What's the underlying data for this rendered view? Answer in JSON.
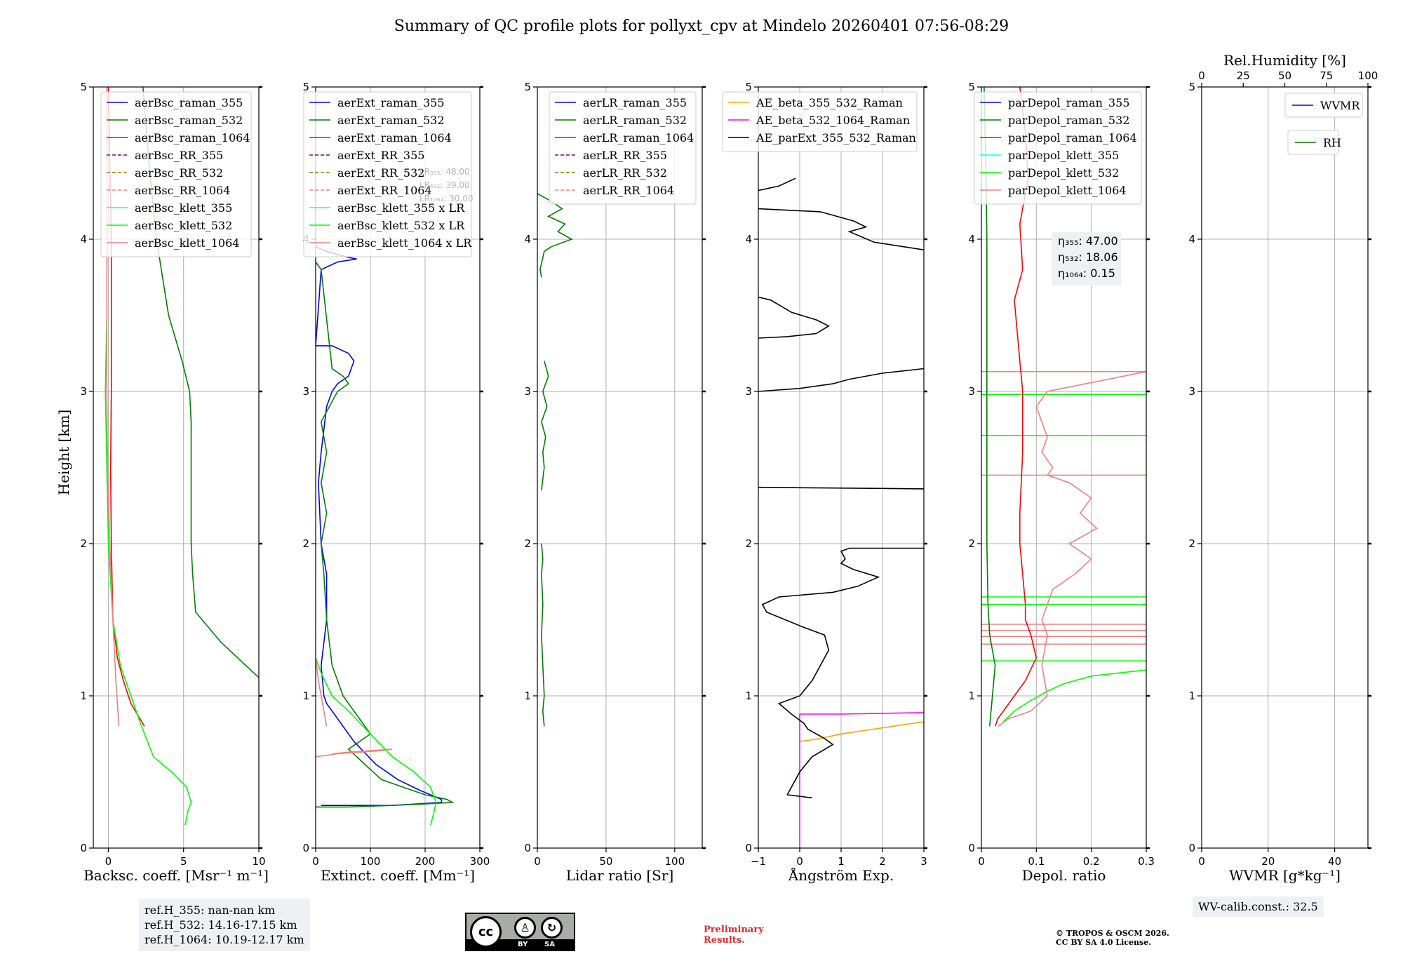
{
  "title": "Summary of QC profile plots for pollyxt_cpv at Mindelo 20260401 07:56-08:29",
  "colors": {
    "blue": "#0000ff",
    "green": "#008000",
    "red": "#ff0000",
    "purple": "#800080",
    "olive": "#808000",
    "salmon": "#fa8072",
    "cyan": "#00ffff",
    "lime": "#00ff00",
    "lightred": "#f08080",
    "orange": "#ffa500",
    "magenta": "#ff00ff",
    "black": "#000000"
  },
  "chart_data": [
    {
      "type": "line",
      "id": "bsc",
      "xlabel": "Backsc. coeff. [Msr⁻¹ m⁻¹]",
      "ylabel": "Height [km]",
      "xlim": [
        -1,
        10
      ],
      "ylim": [
        0,
        5
      ],
      "xticks": [
        0,
        5,
        10
      ],
      "yticks": [
        0,
        1,
        2,
        3,
        4,
        5
      ],
      "legend": [
        "aerBsc_raman_355",
        "aerBsc_raman_532",
        "aerBsc_raman_1064",
        "aerBsc_RR_355",
        "aerBsc_RR_532",
        "aerBsc_RR_1064",
        "aerBsc_klett_355",
        "aerBsc_klett_532",
        "aerBsc_klett_1064"
      ],
      "series": [
        {
          "name": "aerBsc_raman_532",
          "color": "green",
          "x": [
            2.3,
            2.7,
            3.2,
            4.0,
            4.9,
            5.4,
            5.5,
            5.5,
            5.5,
            5.5,
            5.6,
            5.8,
            7.5,
            10.0
          ],
          "y": [
            5.0,
            4.5,
            4.0,
            3.5,
            3.2,
            3.0,
            2.8,
            2.5,
            2.2,
            2.0,
            1.8,
            1.55,
            1.35,
            1.12
          ]
        },
        {
          "name": "aerBsc_raman_1064",
          "color": "red",
          "x": [
            0.0,
            0.1,
            0.2,
            0.2,
            0.2,
            0.15,
            0.2,
            0.3,
            0.6,
            1.0,
            1.5,
            2.4
          ],
          "y": [
            5.0,
            4.5,
            4.0,
            3.5,
            3.0,
            2.5,
            2.0,
            1.5,
            1.25,
            1.1,
            0.95,
            0.8
          ]
        },
        {
          "name": "aerBsc_klett_532",
          "color": "lime",
          "x": [
            -0.1,
            -0.1,
            -0.2,
            -0.1,
            0.0,
            0.3,
            0.8,
            1.5,
            2.2,
            3.0,
            4.2,
            5.2,
            5.5,
            5.3,
            5.1
          ],
          "y": [
            4.0,
            3.5,
            3.0,
            2.5,
            2.0,
            1.5,
            1.2,
            1.0,
            0.8,
            0.6,
            0.5,
            0.4,
            0.3,
            0.25,
            0.15
          ]
        },
        {
          "name": "aerBsc_klett_1064",
          "color": "lightred",
          "x": [
            -0.1,
            -0.1,
            -0.1,
            -0.1,
            -0.1,
            -0.05,
            0.1,
            0.3,
            0.5,
            0.7
          ],
          "y": [
            5.0,
            4.5,
            4.0,
            3.5,
            3.0,
            2.5,
            2.0,
            1.5,
            1.1,
            0.8
          ]
        }
      ]
    },
    {
      "type": "line",
      "id": "ext",
      "xlabel": "Extinct. coeff. [Mm⁻¹]",
      "ylabel": "",
      "xlim": [
        0,
        300
      ],
      "ylim": [
        0,
        5
      ],
      "xticks": [
        0,
        100,
        200,
        300
      ],
      "yticks": [
        0,
        1,
        2,
        3,
        4,
        5
      ],
      "legend": [
        "aerExt_raman_355",
        "aerExt_raman_532",
        "aerExt_raman_1064",
        "aerExt_RR_355",
        "aerExt_RR_532",
        "aerExt_RR_1064",
        "aerBsc_klett_355 x LR",
        "aerBsc_klett_532 x LR",
        "aerBsc_klett_1064 x LR"
      ],
      "lr_note": [
        "LR₃₅₅: 48.00",
        "LR₅₃₂: 39.00",
        "LR₁₀₆₄: 30.00"
      ],
      "series": [
        {
          "name": "aerExt_raman_355",
          "color": "blue",
          "x": [
            0,
            20,
            40,
            60,
            75,
            40,
            10,
            0,
            30,
            60,
            70,
            60,
            40,
            30,
            20,
            10,
            5,
            10,
            20,
            20,
            10,
            15,
            20,
            40,
            70,
            110,
            150,
            190,
            230,
            230,
            140,
            10
          ],
          "y": [
            3.95,
            3.92,
            3.9,
            3.88,
            3.87,
            3.85,
            3.8,
            3.3,
            3.3,
            3.25,
            3.2,
            3.1,
            3.05,
            3.0,
            2.9,
            2.6,
            2.4,
            2.0,
            1.8,
            1.5,
            1.2,
            1.0,
            0.95,
            0.85,
            0.7,
            0.55,
            0.45,
            0.38,
            0.32,
            0.3,
            0.28,
            0.28
          ]
        },
        {
          "name": "aerExt_raman_532",
          "color": "green",
          "x": [
            0,
            10,
            30,
            50,
            60,
            40,
            10,
            20,
            10,
            20,
            10,
            15,
            20,
            30,
            50,
            80,
            100,
            80,
            60,
            90,
            120,
            160,
            200,
            240,
            250,
            200,
            140,
            60,
            0
          ],
          "y": [
            3.85,
            3.8,
            3.15,
            3.1,
            3.05,
            3.0,
            2.8,
            2.6,
            2.4,
            2.2,
            2.0,
            1.8,
            1.5,
            1.2,
            1.0,
            0.85,
            0.75,
            0.7,
            0.65,
            0.55,
            0.45,
            0.4,
            0.35,
            0.32,
            0.3,
            0.29,
            0.28,
            0.27,
            0.27
          ]
        },
        {
          "name": "aerExt_RR_1064",
          "color": "salmon",
          "x": [
            0,
            40,
            80,
            120,
            140,
            100,
            60,
            30
          ],
          "y": [
            0.6,
            0.62,
            0.63,
            0.64,
            0.65,
            0.64,
            0.63,
            0.62
          ]
        },
        {
          "name": "aerBsc_klett_532 x LR",
          "color": "lime",
          "x": [
            0,
            10,
            30,
            60,
            100,
            140,
            180,
            210,
            220,
            215,
            210
          ],
          "y": [
            1.25,
            1.15,
            1.0,
            0.9,
            0.75,
            0.6,
            0.5,
            0.4,
            0.3,
            0.22,
            0.15
          ]
        },
        {
          "name": "aerBsc_klett_1064 x LR",
          "color": "lightred",
          "x": [
            0,
            5,
            10,
            15,
            20
          ],
          "y": [
            1.25,
            1.1,
            1.0,
            0.9,
            0.8
          ]
        }
      ]
    },
    {
      "type": "line",
      "id": "lr",
      "xlabel": "Lidar ratio [Sr]",
      "ylabel": "",
      "xlim": [
        0,
        120
      ],
      "ylim": [
        0,
        5
      ],
      "xticks": [
        0,
        50,
        100
      ],
      "yticks": [
        0,
        1,
        2,
        3,
        4,
        5
      ],
      "legend": [
        "aerLR_raman_355",
        "aerLR_raman_532",
        "aerLR_raman_1064",
        "aerLR_RR_355",
        "aerLR_RR_532",
        "aerLR_RR_1064"
      ],
      "series": [
        {
          "name": "aerLR_raman_532",
          "color": "green",
          "x": [
            0,
            10,
            18,
            8,
            20,
            15,
            25,
            10,
            5,
            2,
            3
          ],
          "y": [
            4.3,
            4.25,
            4.2,
            4.15,
            4.1,
            4.05,
            4.0,
            3.95,
            3.92,
            3.8,
            3.75
          ]
        },
        {
          "name": "aerLR_raman_532_b",
          "color": "green",
          "x": [
            5,
            8,
            4,
            7,
            3,
            6,
            4,
            5,
            3
          ],
          "y": [
            3.2,
            3.1,
            3.0,
            2.9,
            2.8,
            2.7,
            2.6,
            2.5,
            2.35
          ]
        },
        {
          "name": "aerLR_raman_532_c",
          "color": "green",
          "x": [
            3,
            4,
            3,
            4,
            3,
            4,
            5,
            4,
            5
          ],
          "y": [
            2.0,
            1.9,
            1.8,
            1.6,
            1.4,
            1.2,
            1.0,
            0.9,
            0.8
          ]
        }
      ]
    },
    {
      "type": "line",
      "id": "ae",
      "xlabel": "Ångström Exp.",
      "ylabel": "",
      "xlim": [
        -1,
        3
      ],
      "ylim": [
        0,
        5
      ],
      "xticks": [
        -1,
        0,
        1,
        2,
        3
      ],
      "yticks": [
        0,
        1,
        2,
        3,
        4,
        5
      ],
      "legend": [
        "AE_beta_355_532_Raman",
        "AE_beta_532_1064_Raman",
        "AE_parExt_355_532_Raman"
      ],
      "series": [
        {
          "name": "AE_beta_355_532_Raman",
          "color": "orange",
          "x": [
            0.0,
            0.5,
            1.0,
            1.5,
            2.0,
            2.5,
            3.0
          ],
          "y": [
            0.7,
            0.72,
            0.75,
            0.77,
            0.79,
            0.81,
            0.83
          ]
        },
        {
          "name": "AE_beta_532_1064_Raman",
          "color": "magenta",
          "x": [
            0.0,
            0.0,
            0.0,
            0.0,
            0.0,
            1.0,
            3.0
          ],
          "y": [
            0.0,
            0.3,
            0.6,
            0.7,
            0.88,
            0.88,
            0.89
          ]
        },
        {
          "name": "AE_parExt_355_532_Raman",
          "color": "black",
          "x": [
            -1.0,
            -0.5,
            -0.1
          ],
          "y": [
            4.32,
            4.35,
            4.4
          ]
        },
        {
          "name": "AE_parExt_355_532_Raman_b",
          "color": "black",
          "x": [
            -1.0,
            0.5,
            1.3,
            1.6,
            1.2,
            1.8,
            3.0
          ],
          "y": [
            4.2,
            4.18,
            4.12,
            4.08,
            4.05,
            3.98,
            3.93
          ]
        },
        {
          "name": "AE_parExt_355_532_Raman_c",
          "color": "black",
          "x": [
            -1.0,
            -0.7,
            -0.2,
            0.4,
            0.7,
            0.4,
            -0.3,
            -1.0
          ],
          "y": [
            3.62,
            3.6,
            3.52,
            3.47,
            3.43,
            3.38,
            3.36,
            3.35
          ]
        },
        {
          "name": "AE_parExt_355_532_Raman_d",
          "color": "black",
          "x": [
            -1.0,
            0.0,
            0.8,
            1.2,
            2.0,
            3.0
          ],
          "y": [
            3.0,
            3.02,
            3.05,
            3.08,
            3.12,
            3.15
          ]
        },
        {
          "name": "AE_parExt_355_532_Raman_e",
          "color": "black",
          "x": [
            -1.0,
            3.0
          ],
          "y": [
            2.37,
            2.36
          ]
        },
        {
          "name": "AE_parExt_355_532_Raman_f",
          "color": "black",
          "x": [
            3.0,
            1.2,
            1.0,
            1.1,
            1.0,
            1.3,
            1.9,
            1.4,
            0.8,
            -0.5,
            -0.9,
            -0.8,
            0.1,
            0.6,
            0.7,
            0.5,
            0.3,
            0.0,
            -0.5,
            -0.2,
            0.1,
            0.2,
            0.6,
            0.8,
            0.3,
            0.0,
            -0.3,
            0.0,
            0.3
          ],
          "y": [
            1.97,
            1.97,
            1.95,
            1.9,
            1.87,
            1.83,
            1.78,
            1.72,
            1.68,
            1.65,
            1.6,
            1.55,
            1.45,
            1.4,
            1.3,
            1.2,
            1.1,
            1.0,
            0.95,
            0.88,
            0.82,
            0.78,
            0.72,
            0.68,
            0.6,
            0.5,
            0.35,
            0.34,
            0.33
          ]
        }
      ]
    },
    {
      "type": "line",
      "id": "depol",
      "xlabel": "Depol. ratio",
      "ylabel": "",
      "xlim": [
        0,
        0.3
      ],
      "ylim": [
        0,
        5
      ],
      "xticks": [
        0.0,
        0.1,
        0.2,
        0.3
      ],
      "yticks": [
        0,
        1,
        2,
        3,
        4,
        5
      ],
      "legend": [
        "parDepol_raman_355",
        "parDepol_raman_532",
        "parDepol_raman_1064",
        "parDepol_klett_355",
        "parDepol_klett_532",
        "parDepol_klett_1064"
      ],
      "eta_box": [
        "η₃₅₅: 47.00",
        "η₅₃₂: 18.06",
        "η₁₀₆₄: 0.15"
      ],
      "series": [
        {
          "name": "parDepol_raman_532",
          "color": "green",
          "x": [
            0.005,
            0.008,
            0.01,
            0.01,
            0.01,
            0.01,
            0.01,
            0.012,
            0.015,
            0.02,
            0.025,
            0.02,
            0.015
          ],
          "y": [
            5.0,
            4.5,
            4.0,
            3.5,
            3.0,
            2.5,
            2.0,
            1.6,
            1.4,
            1.3,
            1.2,
            1.0,
            0.8
          ]
        },
        {
          "name": "parDepol_raman_1064",
          "color": "red",
          "x": [
            0.07,
            0.08,
            0.085,
            0.07,
            0.075,
            0.06,
            0.065,
            0.07,
            0.075,
            0.075,
            0.07,
            0.07,
            0.075,
            0.08,
            0.08,
            0.09,
            0.1,
            0.08,
            0.05,
            0.03,
            0.025
          ],
          "y": [
            5.0,
            4.7,
            4.4,
            4.1,
            3.8,
            3.6,
            3.4,
            3.2,
            3.0,
            2.6,
            2.2,
            2.0,
            1.8,
            1.6,
            1.5,
            1.4,
            1.25,
            1.1,
            0.95,
            0.85,
            0.8
          ]
        },
        {
          "name": "parDepol_klett_532",
          "color": "lime",
          "x": [
            0.3,
            0.2,
            0.15,
            0.12,
            0.09,
            0.06,
            0.04
          ],
          "y": [
            1.17,
            1.13,
            1.08,
            1.03,
            0.97,
            0.9,
            0.83
          ]
        },
        {
          "name": "parDepol_klett_1064",
          "color": "lightred",
          "x": [
            0.3,
            0.12,
            0.1,
            0.12,
            0.11,
            0.13,
            0.12,
            0.16,
            0.2,
            0.18,
            0.21,
            0.16,
            0.2,
            0.17,
            0.13,
            0.12,
            0.11,
            0.12,
            0.11,
            0.12,
            0.09,
            0.05,
            0.03
          ],
          "y": [
            3.13,
            3.0,
            2.9,
            2.7,
            2.6,
            2.5,
            2.45,
            2.4,
            2.3,
            2.2,
            2.1,
            2.0,
            1.9,
            1.8,
            1.7,
            1.6,
            1.5,
            1.4,
            1.2,
            1.0,
            0.9,
            0.85,
            0.8
          ]
        }
      ],
      "hlines": [
        {
          "color": "lightred",
          "y": [
            3.13,
            2.45,
            1.47,
            1.43,
            1.39,
            1.34
          ]
        },
        {
          "color": "lime",
          "y": [
            2.98,
            2.71,
            1.65,
            1.6,
            1.23
          ]
        }
      ]
    },
    {
      "type": "line",
      "id": "wv",
      "xlabel": "WVMR [g*kg⁻¹]",
      "ylabel": "",
      "xlim": [
        0,
        50
      ],
      "ylim": [
        0,
        5
      ],
      "xticks": [
        0,
        20,
        40
      ],
      "yticks": [
        0,
        1,
        2,
        3,
        4,
        5
      ],
      "top_xlabel": "Rel.Humidity [%]",
      "top_xticks": [
        0,
        25,
        50,
        75,
        100
      ],
      "legend": [
        "WVMR",
        "RH"
      ],
      "series": []
    }
  ],
  "ref_heights": [
    "ref.H_355: nan-nan km",
    "ref.H_532: 14.16-17.15 km",
    "ref.H_1064: 10.19-12.17 km"
  ],
  "wv_calib": "WV-calib.const.: 32.5",
  "cc_license": {
    "left": "BY",
    "right": "SA"
  },
  "preliminary": [
    "Preliminary",
    "Results."
  ],
  "copyright": [
    "© TROPOS & OSCM 2026.",
    "CC BY SA 4.0 License."
  ]
}
